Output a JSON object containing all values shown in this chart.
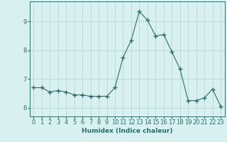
{
  "x": [
    0,
    1,
    2,
    3,
    4,
    5,
    6,
    7,
    8,
    9,
    10,
    11,
    12,
    13,
    14,
    15,
    16,
    17,
    18,
    19,
    20,
    21,
    22,
    23
  ],
  "y": [
    6.7,
    6.7,
    6.55,
    6.6,
    6.55,
    6.45,
    6.45,
    6.4,
    6.4,
    6.4,
    6.7,
    7.75,
    8.35,
    9.35,
    9.05,
    8.5,
    8.55,
    7.95,
    7.35,
    6.25,
    6.25,
    6.35,
    6.65,
    6.05
  ],
  "line_color": "#2d6b6b",
  "marker": "+",
  "marker_size": 4,
  "bg_color": "#d8f0ef",
  "grid_color": "#b8d8d8",
  "xlabel": "Humidex (Indice chaleur)",
  "ylim": [
    5.7,
    9.7
  ],
  "yticks": [
    6,
    7,
    8,
    9
  ],
  "xlim": [
    -0.5,
    23.5
  ],
  "xticks": [
    0,
    1,
    2,
    3,
    4,
    5,
    6,
    7,
    8,
    9,
    10,
    11,
    12,
    13,
    14,
    15,
    16,
    17,
    18,
    19,
    20,
    21,
    22,
    23
  ],
  "tick_color": "#2d6b6b",
  "label_fontsize": 6.5,
  "tick_fontsize": 6
}
